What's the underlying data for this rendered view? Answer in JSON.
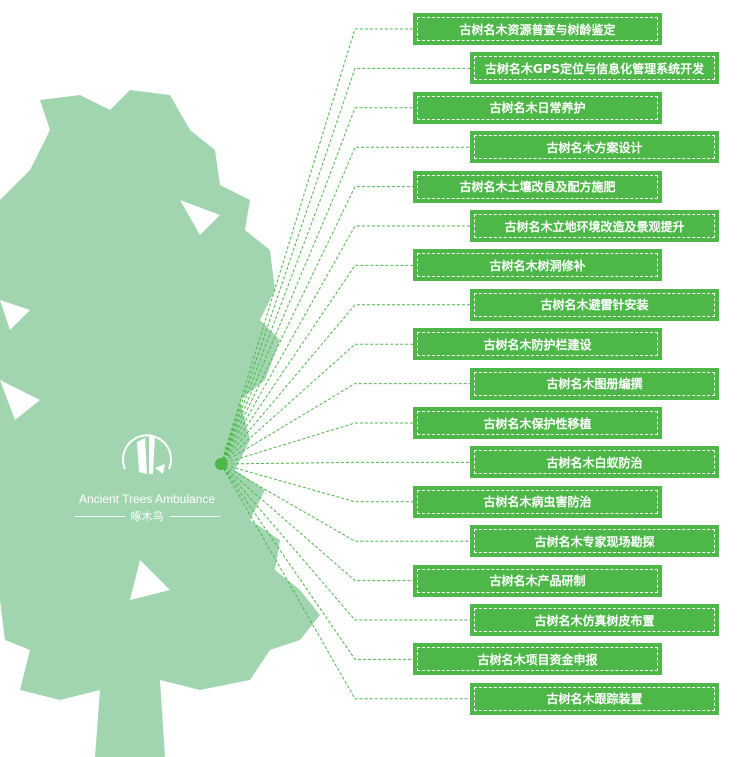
{
  "colors": {
    "box": "#4db848",
    "tree": "#a0d5b0",
    "line": "#4db848"
  },
  "logo": {
    "english": "Ancient Trees Ambulance",
    "chinese": "啄木鸟",
    "icon": "woodpecker-logo-icon"
  },
  "items": [
    "古树名木资源普查与树龄鉴定",
    "古树名木GPS定位与信息化管理系统开发",
    "古树名木日常养护",
    "古树名木方案设计",
    "古树名木土壤改良及配方施肥",
    "古树名木立地环境改造及景观提升",
    "古树名木树洞修补",
    "古树名木避雷针安装",
    "古树名木防护栏建设",
    "古树名木图册编撰",
    "古树名木保护性移植",
    "古树名木白蚁防治",
    "古树名木病虫害防治",
    "古树名木专家现场勘探",
    "古树名木产品研制",
    "古树名木仿真树皮布置",
    "古树名木项目资金申报",
    "古树名木跟踪装置"
  ]
}
